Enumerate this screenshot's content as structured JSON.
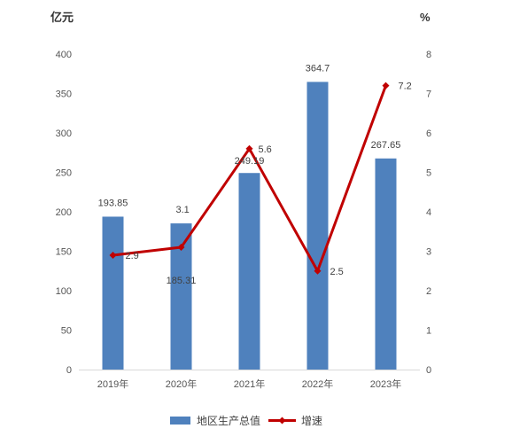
{
  "chart_data": {
    "type": "bar",
    "categories": [
      "2019年",
      "2020年",
      "2021年",
      "2022年",
      "2023年"
    ],
    "series": [
      {
        "name": "地区生产总值",
        "type": "bar",
        "axis": "left",
        "color": "#4f81bd",
        "values": [
          193.85,
          185.31,
          249.19,
          364.7,
          267.65
        ],
        "labels": [
          "193.85",
          "185.31",
          "249.19",
          "364.7",
          "267.65"
        ]
      },
      {
        "name": "增速",
        "type": "line",
        "axis": "right",
        "color": "#c00000",
        "values": [
          2.9,
          3.1,
          5.6,
          2.5,
          7.2
        ],
        "labels": [
          "2.9",
          "3.1",
          "5.6",
          "2.5",
          "7.2"
        ]
      }
    ],
    "y_left": {
      "unit": "亿元",
      "ylim": [
        0,
        400
      ],
      "ticks": [
        "0",
        "50",
        "100",
        "150",
        "200",
        "250",
        "300",
        "350",
        "400"
      ]
    },
    "y_right": {
      "unit": "%",
      "ylim": [
        0,
        8
      ],
      "ticks": [
        "0",
        "1",
        "2",
        "3",
        "4",
        "5",
        "6",
        "7",
        "8"
      ]
    },
    "legend": "bottom",
    "grid": false
  }
}
